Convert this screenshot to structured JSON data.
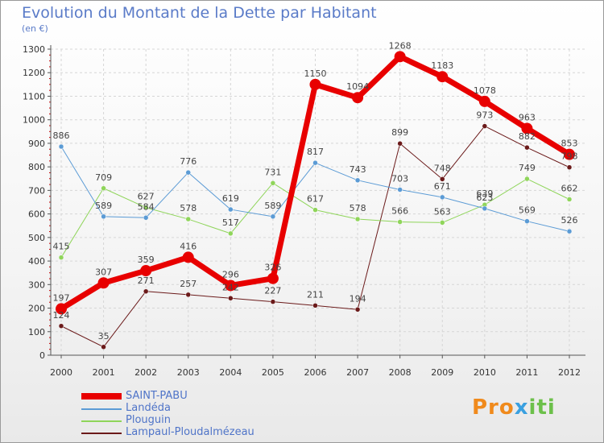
{
  "title": "Evolution du Montant de la Dette par Habitant",
  "subtitle": "(en €)",
  "logo": {
    "parts": [
      "Pro",
      "x",
      "iti"
    ],
    "colors": [
      "#f08a1c",
      "#3aa0e0",
      "#6cc04a"
    ]
  },
  "chart_data": {
    "type": "line",
    "x": [
      "2000",
      "2001",
      "2002",
      "2003",
      "2004",
      "2005",
      "2006",
      "2007",
      "2008",
      "2009",
      "2010",
      "2011",
      "2012"
    ],
    "ylim": [
      0,
      1300
    ],
    "yticks": [
      0,
      100,
      200,
      300,
      400,
      500,
      600,
      700,
      800,
      900,
      1000,
      1100,
      1200,
      1300
    ],
    "grid": true,
    "legend_position": "bottom-left",
    "series": [
      {
        "name": "SAINT-PABU",
        "color": "#e80000",
        "width": 7,
        "values": [
          197,
          307,
          359,
          416,
          296,
          326,
          1150,
          1094,
          1268,
          1183,
          1078,
          963,
          853
        ],
        "labels": [
          "197",
          "307",
          "359",
          "416",
          "296",
          "326",
          "1150",
          "1094",
          "1268",
          "1183",
          "1078",
          "963",
          "853"
        ]
      },
      {
        "name": "Landéda",
        "color": "#5b9bd5",
        "width": 1,
        "values": [
          886,
          589,
          584,
          776,
          619,
          589,
          817,
          743,
          703,
          671,
          623,
          569,
          526
        ],
        "labels": [
          "886",
          "589",
          "584",
          "776",
          "619",
          "589",
          "817",
          "743",
          "703",
          "671",
          "623",
          "569",
          "526"
        ]
      },
      {
        "name": "Plouguin",
        "color": "#8fd55a",
        "width": 1,
        "values": [
          415,
          709,
          627,
          578,
          517,
          731,
          617,
          578,
          566,
          563,
          639,
          749,
          662
        ],
        "labels": [
          "415",
          "709",
          "627",
          "578",
          "517",
          "731",
          "617",
          "578",
          "566",
          "563",
          "639",
          "749",
          "662"
        ]
      },
      {
        "name": "Lampaul-Ploudalmézeau",
        "color": "#6b1a1a",
        "width": 1,
        "values": [
          124,
          35,
          271,
          257,
          242,
          227,
          211,
          194,
          899,
          748,
          973,
          882,
          798
        ],
        "labels": [
          "124",
          "35",
          "271",
          "257",
          "242",
          "227",
          "211",
          "194",
          "899",
          "748",
          "973",
          "882",
          "798"
        ]
      }
    ]
  }
}
